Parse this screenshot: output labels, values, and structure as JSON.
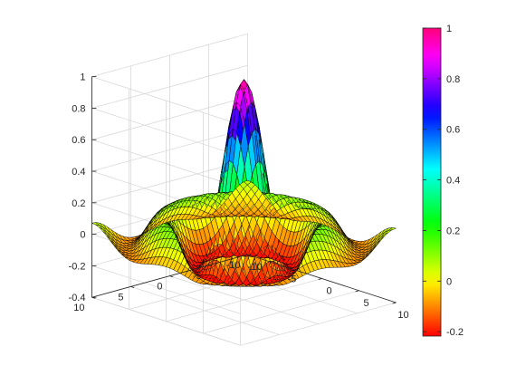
{
  "chart_data": {
    "type": "surface",
    "function": "sinc(R) = sin(R)/R, R = sqrt(x^2 + y^2)",
    "x_range": [
      -10,
      10
    ],
    "y_range": [
      -10,
      10
    ],
    "z_range": [
      -0.4,
      1
    ],
    "x_ticks": [
      "-10",
      "-5",
      "0",
      "5",
      "10"
    ],
    "y_ticks": [
      "-10",
      "-5",
      "0",
      "5",
      "10"
    ],
    "z_ticks": [
      "-0.4",
      "-0.2",
      "0",
      "0.2",
      "0.4",
      "0.6",
      "0.8",
      "1"
    ],
    "colorbar_ticks": [
      "-0.2",
      "0",
      "0.2",
      "0.4",
      "0.6",
      "0.8",
      "1"
    ],
    "colorbar_range": [
      -0.2173,
      1
    ],
    "colormap": "hsv",
    "grid": true,
    "box": true,
    "view": "default 3-D (azimuth -37.5, elevation 30)",
    "mesh_points_per_axis": 41
  }
}
